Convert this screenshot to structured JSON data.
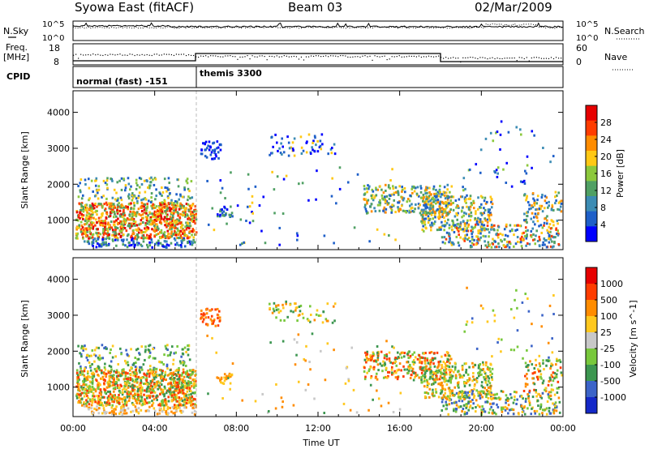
{
  "header": {
    "title": "Syowa East (fitACF)",
    "beam": "Beam 03",
    "date": "02/Mar/2009"
  },
  "top_panel": {
    "left_label": "N.Sky",
    "left_ticks": [
      "10^5",
      "10^0"
    ],
    "right_label": "N.Search",
    "right_ticks": [
      "10^5",
      "10^0"
    ]
  },
  "freq_panel": {
    "left_label_1": "Freq.",
    "left_label_2": "[MHz]",
    "left_ticks": [
      "18",
      "8"
    ],
    "right_label": "Nave",
    "right_ticks": [
      "60",
      "0"
    ]
  },
  "cpid": {
    "label": "CPID",
    "modes": [
      {
        "name": "normal (fast) -151",
        "start_hour": 0
      },
      {
        "name": "themis 3300",
        "start_hour": 6
      }
    ]
  },
  "chart_data": [
    {
      "type": "heatmap",
      "title": "",
      "xlabel": "Time UT",
      "ylabel": "Slant Range [km]",
      "x_ticks": [
        "00:00",
        "04:00",
        "08:00",
        "12:00",
        "16:00",
        "20:00",
        "00:00"
      ],
      "xlim_hours": [
        0,
        24
      ],
      "y_ticks": [
        "1000",
        "2000",
        "3000",
        "4000"
      ],
      "ylim_km": [
        180,
        4600
      ],
      "colorbar": {
        "label": "Power [dB]",
        "ticks": [
          "28",
          "24",
          "20",
          "16",
          "12",
          "8",
          "4"
        ],
        "range": [
          0,
          30
        ],
        "colors": [
          "#0000ff",
          "#1e5fc8",
          "#3c8cb4",
          "#50a064",
          "#8cc83c",
          "#ffc814",
          "#ff8c00",
          "#ff3c00",
          "#e60000"
        ]
      }
    },
    {
      "type": "heatmap",
      "title": "",
      "xlabel": "Time UT",
      "ylabel": "Slant Range [km]",
      "x_ticks": [
        "00:00",
        "04:00",
        "08:00",
        "12:00",
        "16:00",
        "20:00",
        "00:00"
      ],
      "xlim_hours": [
        0,
        24
      ],
      "y_ticks": [
        "1000",
        "2000",
        "3000",
        "4000"
      ],
      "ylim_km": [
        180,
        4600
      ],
      "colorbar": {
        "label": "Velocity [m s^-1]",
        "ticks": [
          "1000",
          "500",
          "100",
          "25",
          "-25",
          "-100",
          "-500",
          "-1000"
        ],
        "colors": [
          "#1428c8",
          "#3c64c8",
          "#3c9650",
          "#78c83c",
          "#c8c8c8",
          "#ffc81e",
          "#ff8c00",
          "#ff3c00",
          "#e60000"
        ]
      }
    }
  ]
}
